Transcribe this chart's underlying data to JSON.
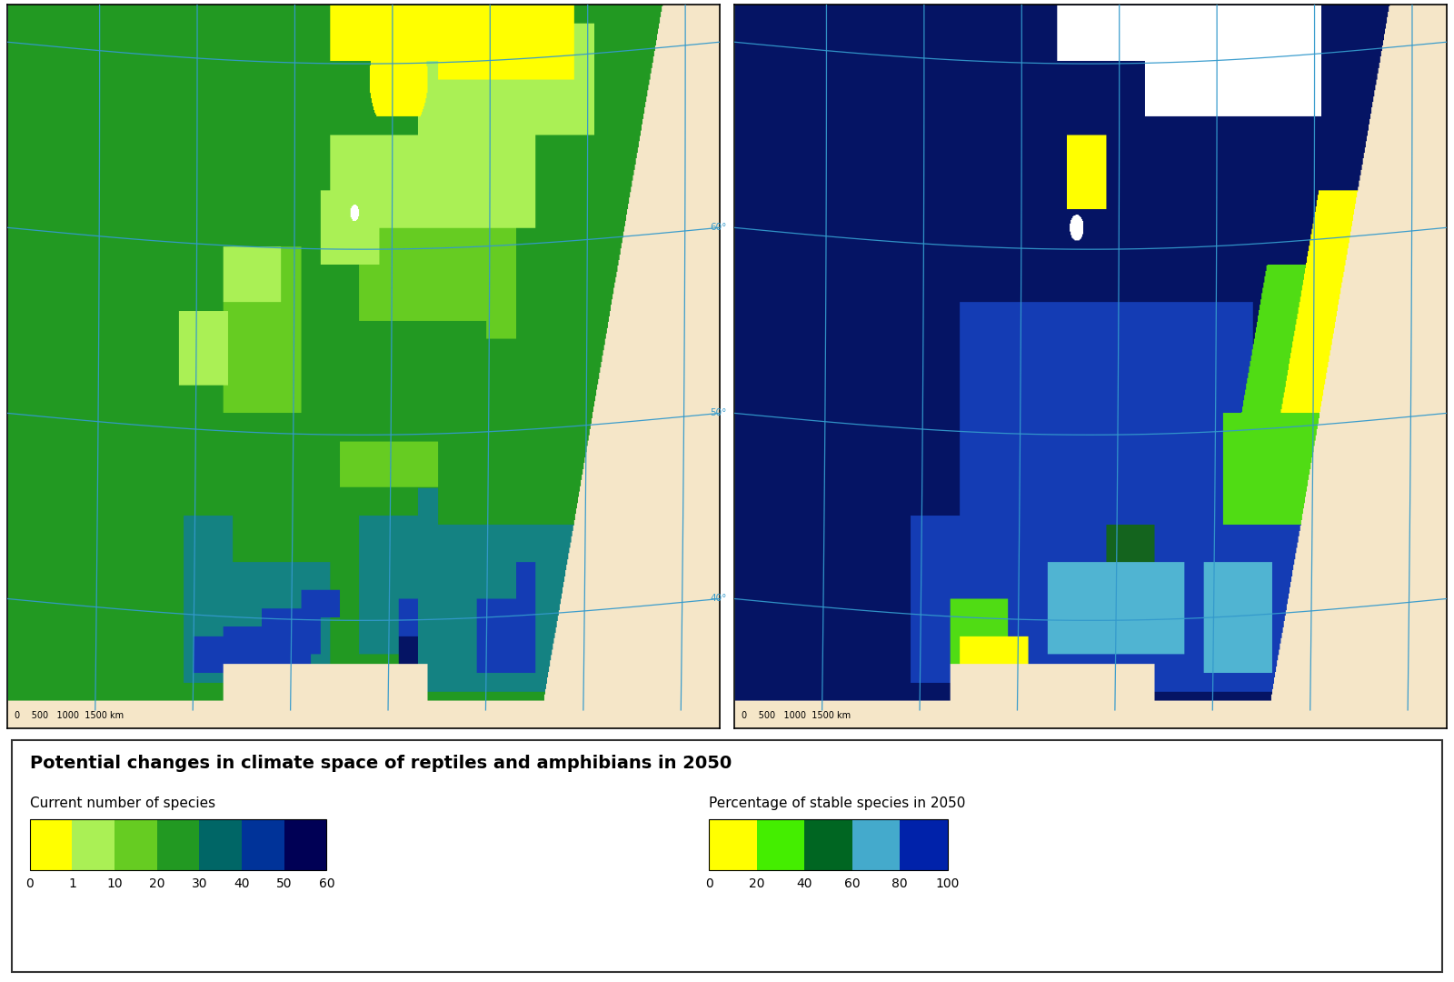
{
  "title": "Potential changes in climate space of reptiles and amphibians in 2050",
  "left_subtitle": "Current number of species",
  "right_subtitle": "Percentage of stable species in 2050",
  "left_colorbar": {
    "colors": [
      "#ffff00",
      "#aaf055",
      "#66cc22",
      "#229922",
      "#006666",
      "#003399",
      "#000055"
    ],
    "ticks": [
      "0",
      "1",
      "10",
      "20",
      "30",
      "40",
      "50",
      "60"
    ]
  },
  "right_colorbar": {
    "colors": [
      "#ffff00",
      "#44ee00",
      "#006622",
      "#44aacc",
      "#0022aa"
    ],
    "ticks": [
      "0",
      "20",
      "40",
      "60",
      "80",
      "100"
    ]
  },
  "ocean_color": "#aaddff",
  "land_bg_color": "#f5e6c8",
  "map_border_color": "#000000",
  "grid_line_color": "#3399cc",
  "scale_bar_text": "0    500   1000  1500 km"
}
